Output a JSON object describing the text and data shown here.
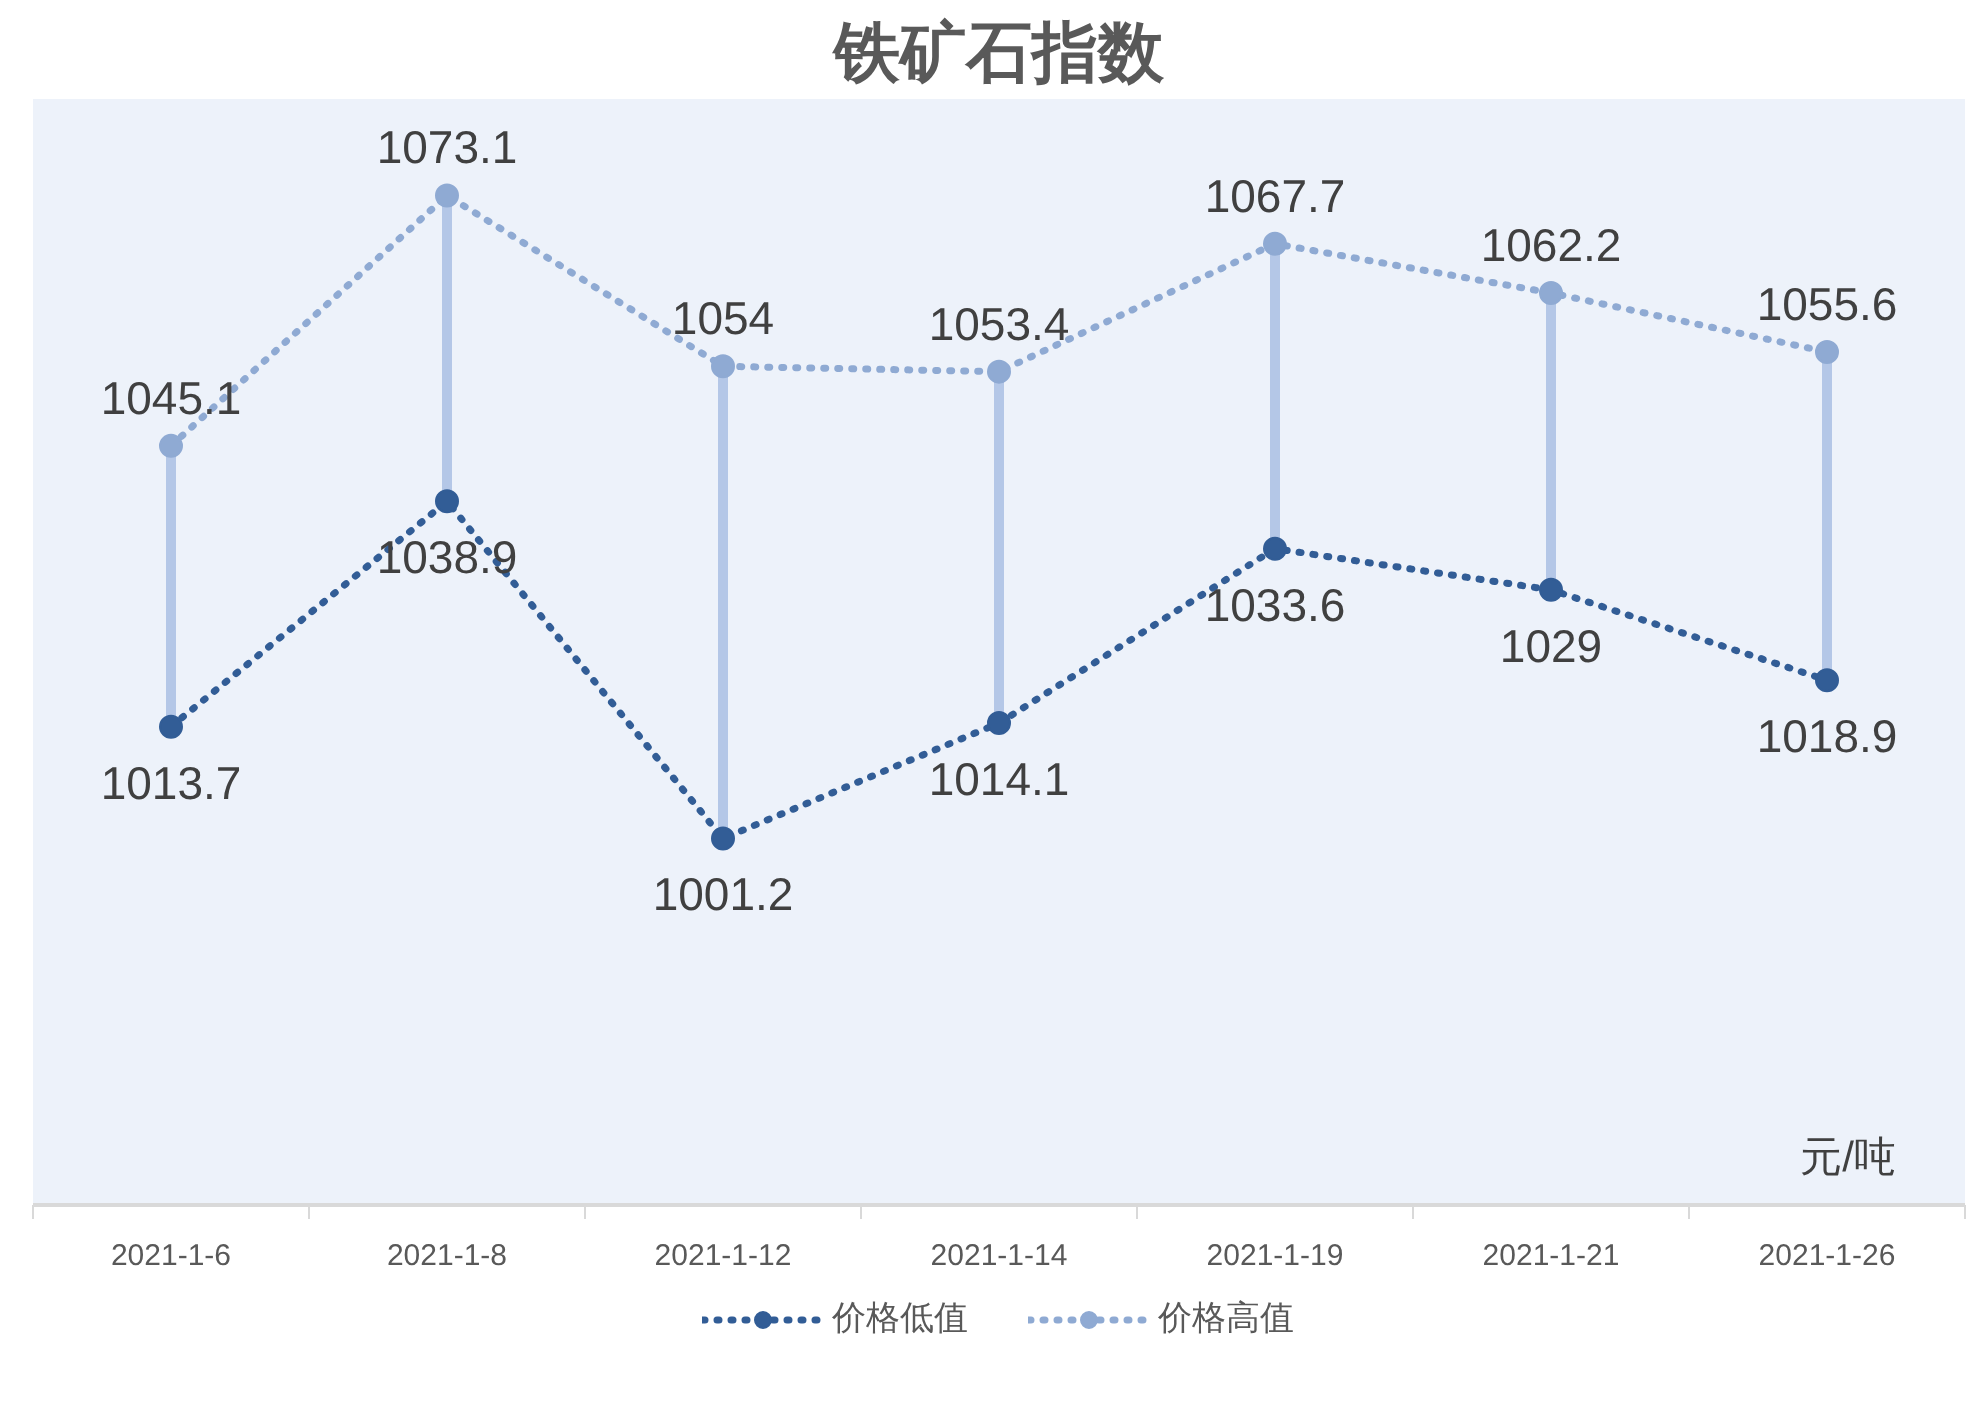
{
  "chart_data": {
    "type": "line",
    "title": "铁矿石指数",
    "categories": [
      "2021-1-6",
      "2021-1-8",
      "2021-1-12",
      "2021-1-14",
      "2021-1-19",
      "2021-1-21",
      "2021-1-26"
    ],
    "series": [
      {
        "name": "价格低值",
        "color": "#325d96",
        "values": [
          1013.7,
          1038.9,
          1001.2,
          1014.1,
          1033.6,
          1029,
          1018.9
        ]
      },
      {
        "name": "价格高值",
        "color": "#8faad3",
        "values": [
          1045.1,
          1073.1,
          1054,
          1053.4,
          1067.7,
          1062.2,
          1055.6
        ]
      }
    ],
    "data_labels": true,
    "marker": "circle",
    "line_style": "dotted",
    "grid": false,
    "legend": "bottom",
    "annotations": [
      "元/吨"
    ]
  }
}
